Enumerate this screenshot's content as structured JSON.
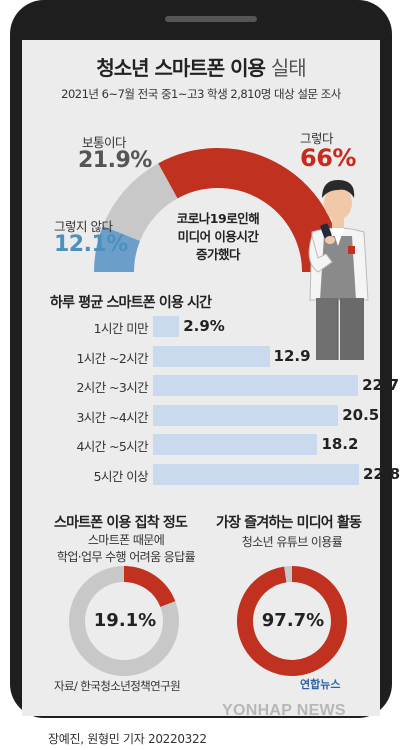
{
  "header": {
    "title_bold": "청소년 스마트폰 이용",
    "title_light": "실태",
    "subtitle": "2021년 6~7월 전국 중1~고3 학생 2,810명 대상 설문 조사"
  },
  "gauge": {
    "center_text": [
      "코로나19로인해",
      "미디어 이용시간",
      "증가했다"
    ],
    "segments": [
      {
        "label": "그렇지 않다",
        "value_text": "12.1%",
        "value": 12.1,
        "color": "#6b9fc9"
      },
      {
        "label": "보통이다",
        "value_text": "21.9%",
        "value": 21.9,
        "color": "#c8c8c8"
      },
      {
        "label": "그렇다",
        "value_text": "66%",
        "value": 66,
        "color": "#c0311f"
      }
    ]
  },
  "bars_section": {
    "title": "하루 평균 스마트폰 이용 시간"
  },
  "chart_data": [
    {
      "type": "pie",
      "title": "",
      "categories": [
        "그렇지 않다",
        "보통이다",
        "그렇다"
      ],
      "values": [
        12.1,
        21.9,
        66
      ]
    },
    {
      "type": "bar",
      "title": "하루 평균 스마트폰 이용 시간",
      "categories": [
        "1시간 미만",
        "1시간 ~2시간",
        "2시간 ~3시간",
        "3시간 ~4시간",
        "4시간 ~5시간",
        "5시간 이상"
      ],
      "values": [
        2.9,
        12.9,
        22.7,
        20.5,
        18.2,
        22.8
      ],
      "value_labels": [
        "2.9%",
        "12.9",
        "22.7",
        "20.5",
        "18.2",
        "22.8"
      ]
    },
    {
      "type": "pie",
      "title": "스마트폰 이용 집착 정도",
      "values": [
        19.1,
        80.9
      ]
    },
    {
      "type": "pie",
      "title": "가장 즐겨하는 미디어 활동",
      "values": [
        97.7,
        2.3
      ]
    }
  ],
  "donut_left": {
    "title": "스마트폰 이용 집착 정도",
    "note_1": "스마트폰 때문에",
    "note_2": "학업·업무 수행 어려움 응답률",
    "value_text": "19.1%",
    "value": 19.1,
    "color": "#c0311f",
    "rest_color": "#c8c8c8"
  },
  "donut_right": {
    "title": "가장 즐겨하는 미디어 활동",
    "note_1": "청소년 유튜브 이용률",
    "value_text": "97.7%",
    "value": 97.7,
    "color": "#c0311f",
    "rest_color": "#c8c8c8"
  },
  "footer": {
    "source": "자료/ 한국청소년정책연구원",
    "logo": "연합뉴스",
    "watermark": "YONHAP NEWS",
    "credit": "장예진, 원형민 기자  20220322"
  }
}
